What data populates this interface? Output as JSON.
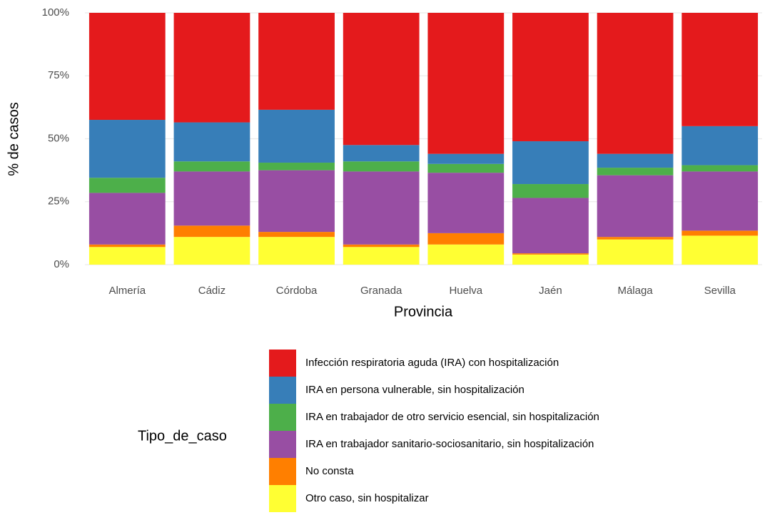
{
  "chart_data": {
    "type": "stacked_bar",
    "x_label": "Provincia",
    "y_label": "% de casos",
    "legend_title": "Tipo_de_caso",
    "categories": [
      "Almería",
      "Cádiz",
      "Córdoba",
      "Granada",
      "Huelva",
      "Jaén",
      "Málaga",
      "Sevilla"
    ],
    "series": [
      {
        "name": "Infección respiratoria aguda (IRA) con hospitalización",
        "color": "#e41a1c",
        "values": [
          42.5,
          43.5,
          38.5,
          52.5,
          56,
          51,
          56,
          45
        ]
      },
      {
        "name": "IRA en persona vulnerable, sin hospitalización",
        "color": "#377eb8",
        "values": [
          23,
          15.5,
          21,
          6.5,
          4,
          17,
          5.5,
          15.5
        ]
      },
      {
        "name": "IRA en trabajador de otro servicio esencial, sin hospitalización",
        "color": "#4daf4a",
        "values": [
          6,
          4,
          3,
          4,
          3.5,
          5.5,
          3,
          2.5
        ]
      },
      {
        "name": "IRA en trabajador sanitario-sociosanitario, sin hospitalización",
        "color": "#984ea3",
        "values": [
          20.5,
          21.5,
          24.5,
          29,
          24,
          22,
          24.5,
          23.5
        ]
      },
      {
        "name": "No consta",
        "color": "#ff7f00",
        "values": [
          1,
          4.5,
          2,
          1,
          4.5,
          0.5,
          1,
          2
        ]
      },
      {
        "name": "Otro caso, sin hospitalizar",
        "color": "#ffff33",
        "values": [
          7,
          11,
          11,
          7,
          8,
          4,
          10,
          11.5
        ]
      }
    ],
    "ylim": [
      0,
      100
    ],
    "yticks": [
      {
        "value": 0,
        "label": "0%"
      },
      {
        "value": 25,
        "label": "25%"
      },
      {
        "value": 50,
        "label": "50%"
      },
      {
        "value": 75,
        "label": "75%"
      },
      {
        "value": 100,
        "label": "100%"
      }
    ],
    "grid": true
  }
}
